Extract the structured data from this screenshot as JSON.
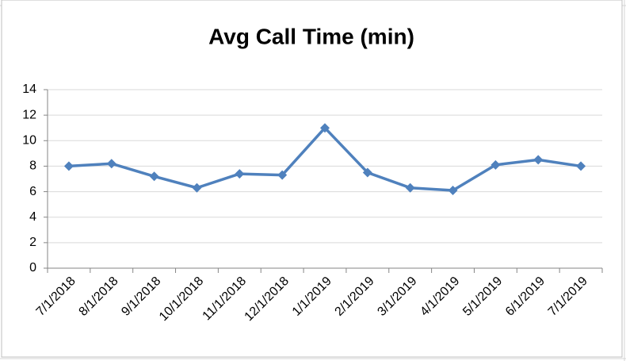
{
  "chart_data": {
    "type": "line",
    "title": "Avg Call Time (min)",
    "categories": [
      "7/1/2018",
      "8/1/2018",
      "9/1/2018",
      "10/1/2018",
      "11/1/2018",
      "12/1/2018",
      "1/1/2019",
      "2/1/2019",
      "3/1/2019",
      "4/1/2019",
      "5/1/2019",
      "6/1/2019",
      "7/1/2019"
    ],
    "values": [
      8.0,
      8.2,
      7.2,
      6.3,
      7.4,
      7.3,
      11.0,
      7.5,
      6.3,
      6.1,
      8.1,
      8.5,
      8.0
    ],
    "color": "#4f81bd",
    "ylim": [
      0,
      14
    ],
    "yticks": [
      0,
      2,
      4,
      6,
      8,
      10,
      12,
      14
    ],
    "grid": true
  }
}
